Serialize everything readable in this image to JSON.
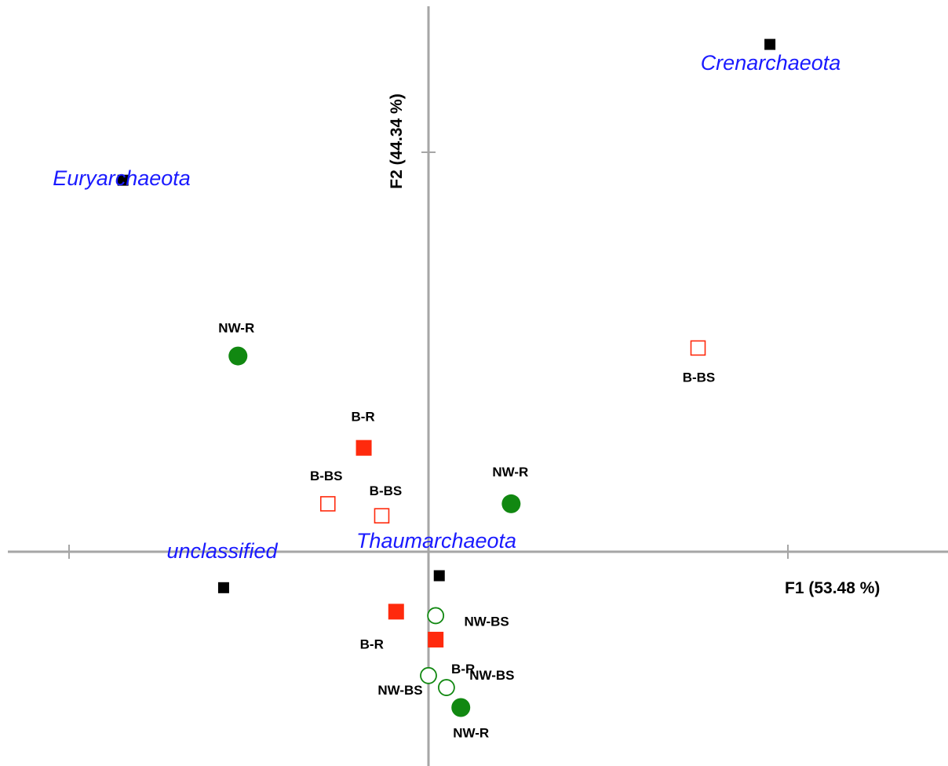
{
  "chart_data": {
    "type": "scatter",
    "title": "",
    "xlabel": "F1 (53.48 %)",
    "ylabel": "F2 (44.34 %)",
    "xlim": [
      -1.2,
      1.5
    ],
    "ylim": [
      -0.8,
      1.5
    ],
    "grid": false,
    "legend": "none",
    "series": [
      {
        "marker": "square-filled-black",
        "color": "#000000",
        "points": [
          {
            "x": 0.95,
            "y": 1.27,
            "label": "Crenarchaeota"
          },
          {
            "x": -0.85,
            "y": 0.93,
            "label": "Euryarchaeota"
          },
          {
            "x": -0.57,
            "y": -0.09,
            "label": "unclassified"
          },
          {
            "x": 0.03,
            "y": -0.06,
            "label": "Thaumarchaeota"
          }
        ]
      },
      {
        "marker": "square-filled",
        "color": "#ff2a0d",
        "points": [
          {
            "x": -0.18,
            "y": 0.26,
            "label": "B-R"
          },
          {
            "x": -0.09,
            "y": -0.15,
            "label": "B-R"
          },
          {
            "x": 0.02,
            "y": -0.22,
            "label": "B-R"
          }
        ]
      },
      {
        "marker": "square-open",
        "color": "#ff2a0d",
        "points": [
          {
            "x": 0.75,
            "y": 0.51,
            "label": "B-BS"
          },
          {
            "x": -0.28,
            "y": 0.12,
            "label": "B-BS"
          },
          {
            "x": -0.13,
            "y": 0.09,
            "label": "B-BS"
          }
        ]
      },
      {
        "marker": "circle-filled",
        "color": "#118811",
        "points": [
          {
            "x": -0.53,
            "y": 0.49,
            "label": "NW-R"
          },
          {
            "x": 0.23,
            "y": 0.12,
            "label": "NW-R"
          },
          {
            "x": 0.09,
            "y": -0.39,
            "label": "NW-R"
          }
        ]
      },
      {
        "marker": "circle-open",
        "color": "#118811",
        "points": [
          {
            "x": 0.02,
            "y": -0.16,
            "label": "NW-BS"
          },
          {
            "x": 0.0,
            "y": -0.31,
            "label": "NW-BS"
          },
          {
            "x": 0.05,
            "y": -0.34,
            "label": "NW-BS"
          }
        ]
      }
    ]
  }
}
